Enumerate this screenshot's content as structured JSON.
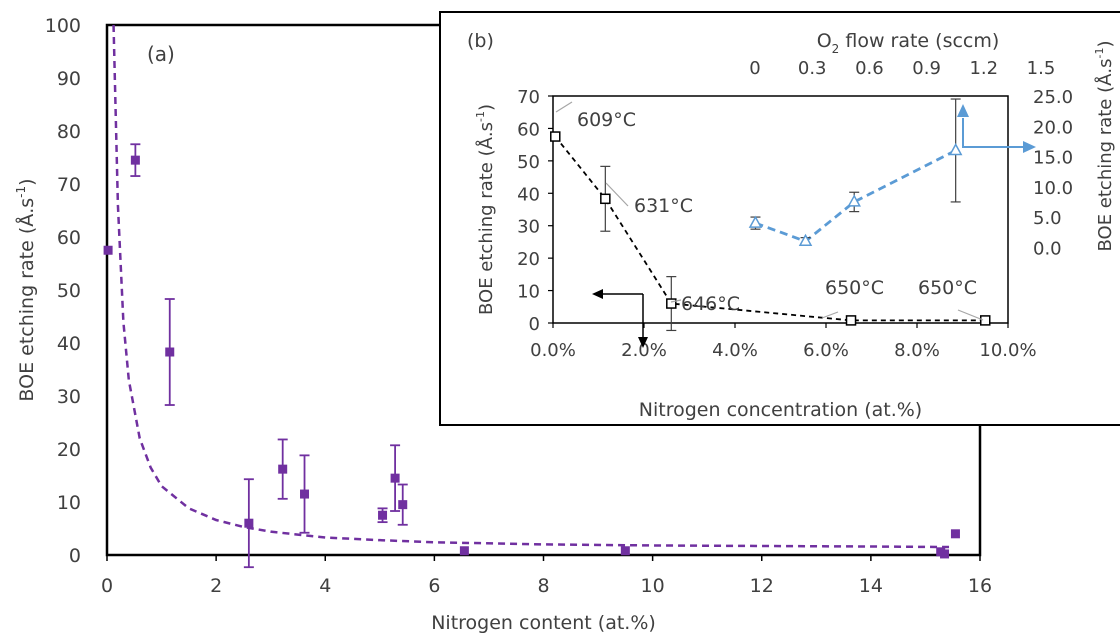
{
  "chart_data": [
    {
      "type": "scatter",
      "panel_label": "(a)",
      "xlabel": "Nitrogen content (at.%)",
      "ylabel": "BOE etching rate (Å.s-1)",
      "ylabel_parts": {
        "base": "BOE etching rate (Å.s",
        "sup": "-1",
        "tail": ")"
      },
      "xlim": [
        0,
        16
      ],
      "ylim": [
        0,
        100
      ],
      "xticks": [
        0,
        2,
        4,
        6,
        8,
        10,
        12,
        14,
        16
      ],
      "yticks": [
        0,
        10,
        20,
        30,
        40,
        50,
        60,
        70,
        80,
        90,
        100
      ],
      "marker_color": "#7030a0",
      "fit_color": "#7030a0",
      "points": [
        {
          "x": 0.02,
          "y": 57.5,
          "yerr": null
        },
        {
          "x": 0.52,
          "y": 74.5,
          "yerr": 3
        },
        {
          "x": 1.15,
          "y": 38.3,
          "yerr": 10
        },
        {
          "x": 2.6,
          "y": 6.0,
          "yerr": 8.3
        },
        {
          "x": 3.22,
          "y": 16.2,
          "yerr": 5.6
        },
        {
          "x": 3.62,
          "y": 11.5,
          "yerr": 7.3
        },
        {
          "x": 5.05,
          "y": 7.5,
          "yerr": 1.3
        },
        {
          "x": 5.28,
          "y": 14.5,
          "yerr": 6.2
        },
        {
          "x": 5.42,
          "y": 9.5,
          "yerr": 3.8
        },
        {
          "x": 6.55,
          "y": 0.8,
          "yerr": null
        },
        {
          "x": 9.5,
          "y": 0.8,
          "yerr": null
        },
        {
          "x": 15.28,
          "y": 0.6,
          "yerr": null
        },
        {
          "x": 15.35,
          "y": 0.2,
          "yerr": null
        },
        {
          "x": 15.55,
          "y": 4.0,
          "yerr": null
        }
      ],
      "fit_line": {
        "style": "dashed",
        "x": [
          0.12,
          0.2,
          0.3,
          0.4,
          0.6,
          0.8,
          1.0,
          1.5,
          2.0,
          2.5,
          3.0,
          4.0,
          5.0,
          6.0,
          8.0,
          10.0,
          12.0,
          14.0,
          15.5
        ],
        "y": [
          100,
          66,
          44,
          33,
          22,
          16.5,
          13,
          8.8,
          6.6,
          5.3,
          4.4,
          3.3,
          2.8,
          2.4,
          2.0,
          1.8,
          1.7,
          1.6,
          1.5
        ]
      }
    },
    {
      "type": "line",
      "panel_label": "(b)",
      "xlabel": "Nitrogen concentration (at.%)",
      "xlim": [
        0,
        10
      ],
      "xtick_labels": [
        "0.0%",
        "2.0%",
        "4.0%",
        "6.0%",
        "8.0%",
        "10.0%"
      ],
      "x2label_parts": {
        "base": "O",
        "sub": "2",
        "tail": " flow rate (sccm)"
      },
      "x2label": "O2 flow rate (sccm)",
      "x2ticks": [
        "0",
        "0.3",
        "0.6",
        "0.9",
        "1.2",
        "1.5"
      ],
      "ylabel": "BOE etching rate (Å.s-1)",
      "ylabel_parts": {
        "base": "BOE etching rate (Å.s",
        "sup": "-1",
        "tail": ")"
      },
      "ylim": [
        0,
        70
      ],
      "yticks": [
        0,
        10,
        20,
        30,
        40,
        50,
        60,
        70
      ],
      "y2label": "BOE etching rate (Å.s-1)",
      "y2label_parts": {
        "base": "BOE etching rate (Å.s",
        "sup": "-1",
        "tail": ")"
      },
      "y2tick_labels": [
        "0.0",
        "5.0",
        "10.0",
        "15.0",
        "20.0",
        "25.0"
      ],
      "y2lim": [
        -12.5,
        25
      ],
      "series": [
        {
          "axis": "left",
          "marker": "square",
          "color": "#000000",
          "style": "dashed",
          "points": [
            {
              "x": 0.05,
              "y": 57.5,
              "yerr": null,
              "label": "609°C"
            },
            {
              "x": 1.15,
              "y": 38.3,
              "yerr": 10,
              "label": "631°C"
            },
            {
              "x": 2.6,
              "y": 6.0,
              "yerr": 8.3,
              "label": "646°C"
            },
            {
              "x": 6.55,
              "y": 0.8,
              "yerr": null,
              "label": "650°C"
            },
            {
              "x": 9.5,
              "y": 0.8,
              "yerr": null,
              "label": "650°C"
            }
          ]
        },
        {
          "axis": "right",
          "marker": "triangle",
          "color": "#5b9bd5",
          "style": "dashed",
          "points": [
            {
              "x": 4.45,
              "y": 4.0,
              "yerr": 1.0
            },
            {
              "x": 5.55,
              "y": 1.0,
              "yerr": 0.6
            },
            {
              "x": 6.62,
              "y": 7.5,
              "yerr": 1.6
            },
            {
              "x": 8.85,
              "y": 16.0,
              "yerr": 8.5
            }
          ]
        }
      ]
    }
  ]
}
